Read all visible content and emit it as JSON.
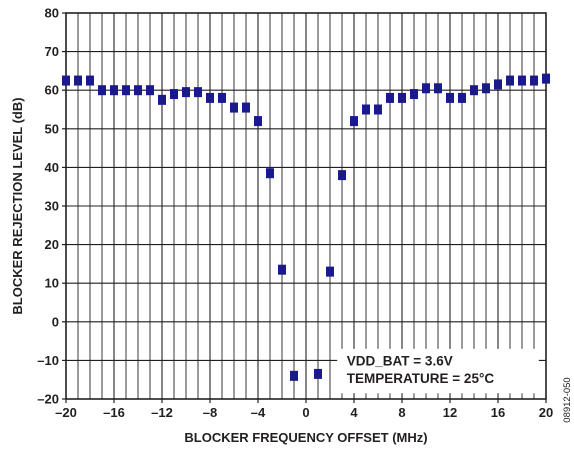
{
  "chart_data": {
    "type": "scatter",
    "xlabel": "BLOCKER FREQUENCY OFFSET (MHz)",
    "ylabel": "BLOCKER REJECTION LEVEL (dB)",
    "xlim": [
      -20,
      20
    ],
    "ylim": [
      -20,
      80
    ],
    "x_ticks": [
      -20,
      -16,
      -12,
      -8,
      -4,
      0,
      4,
      8,
      12,
      16,
      20
    ],
    "x_tick_labels": [
      "–20",
      "–16",
      "–12",
      "–8",
      "–4",
      "0",
      "4",
      "8",
      "12",
      "16",
      "20"
    ],
    "y_ticks": [
      -20,
      -10,
      0,
      10,
      20,
      30,
      40,
      50,
      60,
      70,
      80
    ],
    "y_tick_labels": [
      "–20",
      "–10",
      "0",
      "10",
      "20",
      "30",
      "40",
      "50",
      "60",
      "70",
      "80"
    ],
    "x_minor_step": 1,
    "y_minor_step": 10,
    "grid": true,
    "marker": "square",
    "marker_color": "#1a1a8c",
    "series": [
      {
        "x": [
          -20,
          -19,
          -18,
          -17,
          -16,
          -15,
          -14,
          -13,
          -12,
          -11,
          -10,
          -9,
          -8,
          -7,
          -6,
          -5,
          -4,
          -3,
          -2,
          -1,
          1,
          2,
          3,
          4,
          5,
          6,
          7,
          8,
          9,
          10,
          11,
          12,
          13,
          14,
          15,
          16,
          17,
          18,
          19,
          20
        ],
        "values": [
          62.5,
          62.5,
          62.5,
          60,
          60,
          60,
          60,
          60,
          57.5,
          59,
          59.5,
          59.5,
          58,
          58,
          55.5,
          55.5,
          52,
          38.5,
          13.5,
          -14,
          -13.5,
          13,
          38,
          52,
          55,
          55,
          58,
          58,
          59,
          60.5,
          60.5,
          58,
          58,
          60,
          60.5,
          61.5,
          62.5,
          62.5,
          62.5,
          63
        ]
      }
    ],
    "annotations": [
      "VDD_BAT = 3.6V",
      "TEMPERATURE = 25°C"
    ],
    "figure_id": "08912-050"
  }
}
